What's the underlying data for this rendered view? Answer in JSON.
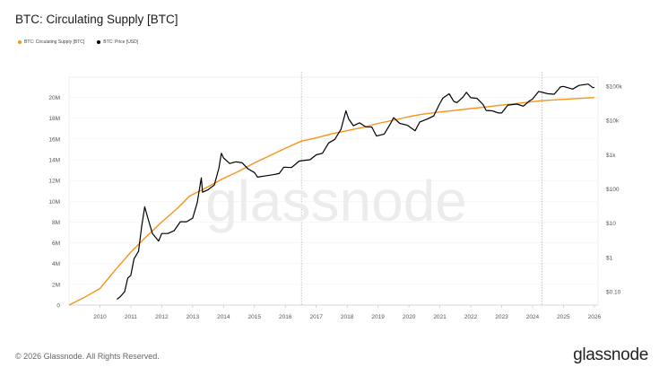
{
  "header": {
    "title": "BTC: Circulating Supply [BTC]"
  },
  "legend": {
    "items": [
      {
        "label": "BTC: Circulating Supply [BTC]",
        "color": "#f7931a"
      },
      {
        "label": "BTC: Price [USD]",
        "color": "#000000"
      }
    ]
  },
  "watermark": "glassnode",
  "footer": {
    "copyright": "© 2026 Glassnode. All Rights Reserved.",
    "logo": "glassnode"
  },
  "chart_data": {
    "type": "line",
    "title": "BTC: Circulating Supply [BTC]",
    "x_ticks": [
      "2010",
      "2011",
      "2012",
      "2013",
      "2014",
      "2015",
      "2016",
      "2017",
      "2018",
      "2019",
      "2020",
      "2021",
      "2022",
      "2023",
      "2024",
      "2025",
      "2026"
    ],
    "y_left_ticks": [
      "0",
      "2M",
      "4M",
      "6M",
      "8M",
      "10M",
      "12M",
      "14M",
      "16M",
      "18M",
      "20M"
    ],
    "y_right_ticks": [
      "$0.10",
      "$1",
      "$10",
      "$100",
      "$1k",
      "$10k",
      "$100k"
    ],
    "y_left_lim": [
      0,
      21000000
    ],
    "y_right_scale": "log",
    "halving_markers": [
      2016.52,
      2024.3
    ],
    "series": [
      {
        "name": "BTC: Circulating Supply [BTC]",
        "color": "#f7931a",
        "axis": "left",
        "points": [
          [
            2009.0,
            0
          ],
          [
            2009.5,
            750000
          ],
          [
            2010.0,
            1600000
          ],
          [
            2010.5,
            3400000
          ],
          [
            2011.0,
            5100000
          ],
          [
            2011.5,
            6600000
          ],
          [
            2012.0,
            8000000
          ],
          [
            2012.5,
            9300000
          ],
          [
            2012.9,
            10500000
          ],
          [
            2013.5,
            11400000
          ],
          [
            2014.0,
            12200000
          ],
          [
            2014.5,
            12900000
          ],
          [
            2015.0,
            13700000
          ],
          [
            2015.5,
            14400000
          ],
          [
            2016.0,
            15100000
          ],
          [
            2016.52,
            15800000
          ],
          [
            2017.0,
            16100000
          ],
          [
            2017.5,
            16500000
          ],
          [
            2018.0,
            16800000
          ],
          [
            2018.5,
            17100000
          ],
          [
            2019.0,
            17500000
          ],
          [
            2019.5,
            17800000
          ],
          [
            2020.0,
            18150000
          ],
          [
            2020.4,
            18370000
          ],
          [
            2021.0,
            18600000
          ],
          [
            2021.5,
            18750000
          ],
          [
            2022.0,
            18930000
          ],
          [
            2022.5,
            19080000
          ],
          [
            2023.0,
            19260000
          ],
          [
            2023.5,
            19420000
          ],
          [
            2024.0,
            19590000
          ],
          [
            2024.3,
            19690000
          ],
          [
            2025.0,
            19820000
          ],
          [
            2025.5,
            19900000
          ],
          [
            2026.0,
            19990000
          ]
        ]
      },
      {
        "name": "BTC: Price [USD]",
        "color": "#000000",
        "axis": "right",
        "points": [
          [
            2010.55,
            0.06
          ],
          [
            2010.65,
            0.07
          ],
          [
            2010.8,
            0.1
          ],
          [
            2010.9,
            0.25
          ],
          [
            2011.0,
            0.3
          ],
          [
            2011.1,
            0.9
          ],
          [
            2011.25,
            1.5
          ],
          [
            2011.35,
            8
          ],
          [
            2011.45,
            30
          ],
          [
            2011.55,
            14
          ],
          [
            2011.7,
            5
          ],
          [
            2011.9,
            3
          ],
          [
            2012.0,
            5
          ],
          [
            2012.2,
            5
          ],
          [
            2012.4,
            6
          ],
          [
            2012.6,
            11
          ],
          [
            2012.8,
            11
          ],
          [
            2013.0,
            14
          ],
          [
            2013.15,
            40
          ],
          [
            2013.28,
            210
          ],
          [
            2013.32,
            80
          ],
          [
            2013.5,
            95
          ],
          [
            2013.7,
            130
          ],
          [
            2013.85,
            400
          ],
          [
            2013.93,
            1100
          ],
          [
            2014.0,
            800
          ],
          [
            2014.2,
            550
          ],
          [
            2014.4,
            620
          ],
          [
            2014.6,
            580
          ],
          [
            2014.8,
            380
          ],
          [
            2015.0,
            300
          ],
          [
            2015.1,
            220
          ],
          [
            2015.3,
            235
          ],
          [
            2015.6,
            260
          ],
          [
            2015.8,
            280
          ],
          [
            2015.95,
            430
          ],
          [
            2016.2,
            420
          ],
          [
            2016.45,
            650
          ],
          [
            2016.55,
            670
          ],
          [
            2016.8,
            710
          ],
          [
            2017.0,
            990
          ],
          [
            2017.2,
            1100
          ],
          [
            2017.4,
            2200
          ],
          [
            2017.6,
            2800
          ],
          [
            2017.8,
            5500
          ],
          [
            2017.96,
            19000
          ],
          [
            2018.05,
            11000
          ],
          [
            2018.2,
            7000
          ],
          [
            2018.4,
            8500
          ],
          [
            2018.6,
            6500
          ],
          [
            2018.8,
            6400
          ],
          [
            2018.95,
            3500
          ],
          [
            2019.2,
            4000
          ],
          [
            2019.4,
            8000
          ],
          [
            2019.5,
            12000
          ],
          [
            2019.7,
            8200
          ],
          [
            2019.95,
            7200
          ],
          [
            2020.2,
            5000
          ],
          [
            2020.35,
            9000
          ],
          [
            2020.6,
            11000
          ],
          [
            2020.8,
            13500
          ],
          [
            2020.98,
            29000
          ],
          [
            2021.1,
            45000
          ],
          [
            2021.3,
            60000
          ],
          [
            2021.45,
            36000
          ],
          [
            2021.55,
            33000
          ],
          [
            2021.75,
            48000
          ],
          [
            2021.86,
            66000
          ],
          [
            2022.0,
            46000
          ],
          [
            2022.2,
            44000
          ],
          [
            2022.4,
            29000
          ],
          [
            2022.5,
            19500
          ],
          [
            2022.7,
            19000
          ],
          [
            2022.9,
            16500
          ],
          [
            2023.0,
            16500
          ],
          [
            2023.2,
            28000
          ],
          [
            2023.5,
            30000
          ],
          [
            2023.7,
            26000
          ],
          [
            2023.9,
            37000
          ],
          [
            2024.0,
            42000
          ],
          [
            2024.2,
            70000
          ],
          [
            2024.5,
            60000
          ],
          [
            2024.7,
            58000
          ],
          [
            2024.9,
            95000
          ],
          [
            2025.0,
            98000
          ],
          [
            2025.3,
            82000
          ],
          [
            2025.5,
            105000
          ],
          [
            2025.8,
            115000
          ],
          [
            2025.95,
            90000
          ],
          [
            2026.0,
            92000
          ]
        ]
      }
    ]
  }
}
